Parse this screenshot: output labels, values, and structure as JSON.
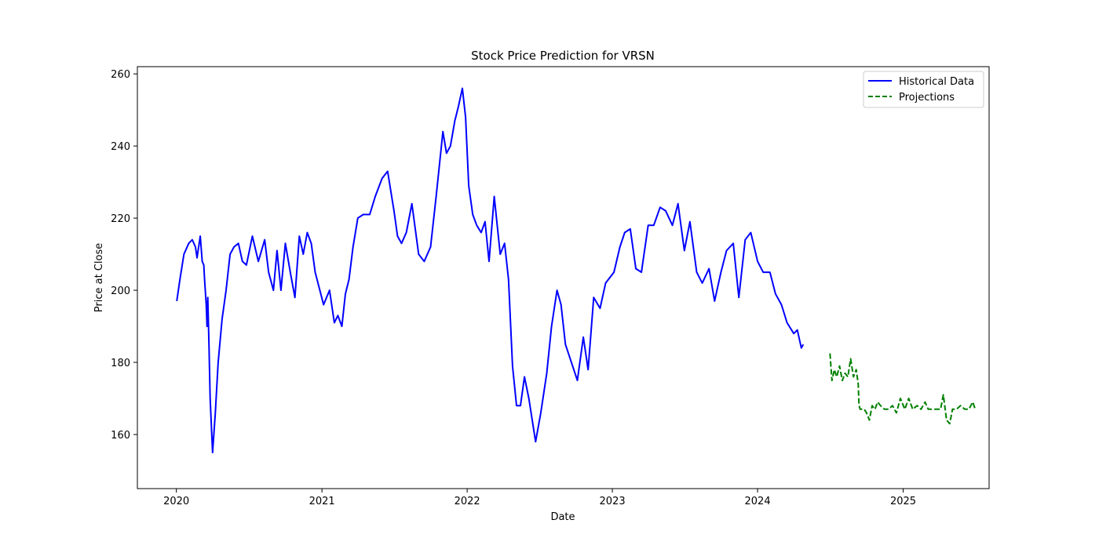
{
  "chart_data": {
    "type": "line",
    "title": "Stock Price Prediction for VRSN",
    "xlabel": "Date",
    "ylabel": "Price at Close",
    "xlim": [
      "2019-09-25",
      "2025-08-05"
    ],
    "ylim": [
      145,
      262
    ],
    "x_ticks": [
      "2020",
      "2021",
      "2022",
      "2023",
      "2024",
      "2025"
    ],
    "y_ticks": [
      160,
      180,
      200,
      220,
      240,
      260
    ],
    "grid": false,
    "legend_position": "top-right",
    "series": [
      {
        "name": "Historical Data",
        "color": "#0000ff",
        "style": "solid",
        "x": [
          "2020-01-02",
          "2020-01-10",
          "2020-01-20",
          "2020-02-01",
          "2020-02-10",
          "2020-02-18",
          "2020-02-22",
          "2020-03-01",
          "2020-03-06",
          "2020-03-10",
          "2020-03-12",
          "2020-03-16",
          "2020-03-18",
          "2020-03-20",
          "2020-03-23",
          "2020-03-26",
          "2020-04-01",
          "2020-04-08",
          "2020-04-15",
          "2020-04-25",
          "2020-05-05",
          "2020-05-15",
          "2020-05-25",
          "2020-06-05",
          "2020-06-15",
          "2020-06-25",
          "2020-07-10",
          "2020-07-25",
          "2020-08-10",
          "2020-08-20",
          "2020-09-01",
          "2020-09-10",
          "2020-09-20",
          "2020-10-01",
          "2020-10-15",
          "2020-10-25",
          "2020-11-05",
          "2020-11-15",
          "2020-11-25",
          "2020-12-05",
          "2020-12-15",
          "2021-01-05",
          "2021-01-20",
          "2021-02-01",
          "2021-02-10",
          "2021-02-20",
          "2021-03-01",
          "2021-03-10",
          "2021-03-20",
          "2021-04-01",
          "2021-04-15",
          "2021-05-01",
          "2021-05-15",
          "2021-06-01",
          "2021-06-15",
          "2021-07-01",
          "2021-07-10",
          "2021-07-20",
          "2021-08-01",
          "2021-08-15",
          "2021-09-01",
          "2021-09-15",
          "2021-10-01",
          "2021-10-15",
          "2021-11-01",
          "2021-11-10",
          "2021-11-20",
          "2021-12-01",
          "2021-12-10",
          "2021-12-20",
          "2021-12-28",
          "2022-01-05",
          "2022-01-15",
          "2022-01-25",
          "2022-02-05",
          "2022-02-15",
          "2022-02-25",
          "2022-03-10",
          "2022-03-25",
          "2022-04-05",
          "2022-04-15",
          "2022-04-25",
          "2022-05-05",
          "2022-05-15",
          "2022-05-25",
          "2022-06-05",
          "2022-06-15",
          "2022-06-22",
          "2022-07-05",
          "2022-07-20",
          "2022-08-01",
          "2022-08-15",
          "2022-08-25",
          "2022-09-05",
          "2022-09-20",
          "2022-10-05",
          "2022-10-20",
          "2022-11-01",
          "2022-11-15",
          "2022-12-01",
          "2022-12-15",
          "2023-01-05",
          "2023-01-20",
          "2023-02-01",
          "2023-02-15",
          "2023-03-01",
          "2023-03-15",
          "2023-04-01",
          "2023-04-15",
          "2023-05-01",
          "2023-05-15",
          "2023-06-01",
          "2023-06-15",
          "2023-07-01",
          "2023-07-15",
          "2023-08-01",
          "2023-08-15",
          "2023-09-01",
          "2023-09-15",
          "2023-10-01",
          "2023-10-15",
          "2023-11-01",
          "2023-11-15",
          "2023-12-01",
          "2023-12-15",
          "2024-01-01",
          "2024-01-15",
          "2024-02-01",
          "2024-02-15",
          "2024-03-01",
          "2024-03-15",
          "2024-04-01",
          "2024-04-10",
          "2024-04-20",
          "2024-04-25"
        ],
        "y": [
          197,
          203,
          210,
          213,
          214,
          212,
          209,
          215,
          208,
          207,
          203,
          196,
          190,
          198,
          185,
          170,
          155,
          166,
          180,
          192,
          200,
          210,
          212,
          213,
          208,
          207,
          215,
          208,
          214,
          205,
          200,
          211,
          200,
          213,
          204,
          198,
          215,
          210,
          216,
          213,
          205,
          196,
          200,
          191,
          193,
          190,
          199,
          203,
          212,
          220,
          221,
          221,
          226,
          231,
          233,
          222,
          215,
          213,
          216,
          224,
          210,
          208,
          212,
          226,
          244,
          238,
          240,
          247,
          251,
          256,
          248,
          229,
          221,
          218,
          216,
          219,
          208,
          226,
          210,
          213,
          203,
          179,
          168,
          168,
          176,
          170,
          163,
          158,
          166,
          177,
          190,
          200,
          196,
          185,
          180,
          175,
          187,
          178,
          198,
          195,
          202,
          205,
          212,
          216,
          217,
          206,
          205,
          218,
          218,
          223,
          222,
          218,
          224,
          211,
          219,
          205,
          202,
          206,
          197,
          205,
          211,
          213,
          198,
          214,
          216,
          208,
          205,
          205,
          199,
          196,
          191,
          188,
          189,
          184,
          185
        ]
      },
      {
        "name": "Projections",
        "color": "#008000",
        "style": "dashed",
        "x": [
          "2024-07-01",
          "2024-07-06",
          "2024-07-12",
          "2024-07-18",
          "2024-07-25",
          "2024-08-01",
          "2024-08-08",
          "2024-08-15",
          "2024-08-22",
          "2024-08-29",
          "2024-09-05",
          "2024-09-10",
          "2024-09-12",
          "2024-09-15",
          "2024-09-20",
          "2024-09-25",
          "2024-10-01",
          "2024-10-08",
          "2024-10-15",
          "2024-10-22",
          "2024-10-29",
          "2024-11-05",
          "2024-11-15",
          "2024-11-25",
          "2024-12-05",
          "2024-12-15",
          "2024-12-25",
          "2025-01-05",
          "2025-01-15",
          "2025-01-25",
          "2025-02-05",
          "2025-02-15",
          "2025-02-25",
          "2025-03-05",
          "2025-03-15",
          "2025-03-25",
          "2025-04-05",
          "2025-04-12",
          "2025-04-20",
          "2025-04-28",
          "2025-05-05",
          "2025-05-15",
          "2025-05-25",
          "2025-06-05",
          "2025-06-15",
          "2025-06-25",
          "2025-07-01"
        ],
        "y": [
          182.5,
          175,
          178,
          176,
          179,
          175,
          177,
          176,
          181,
          176,
          178,
          174,
          168,
          167,
          167,
          167,
          166,
          164,
          168,
          167,
          169,
          168,
          167,
          167,
          168,
          166,
          170,
          167,
          170,
          167,
          168,
          167,
          169,
          167,
          167,
          167,
          167,
          171,
          164,
          163,
          167,
          167,
          168,
          167,
          167,
          169,
          167
        ]
      }
    ]
  }
}
